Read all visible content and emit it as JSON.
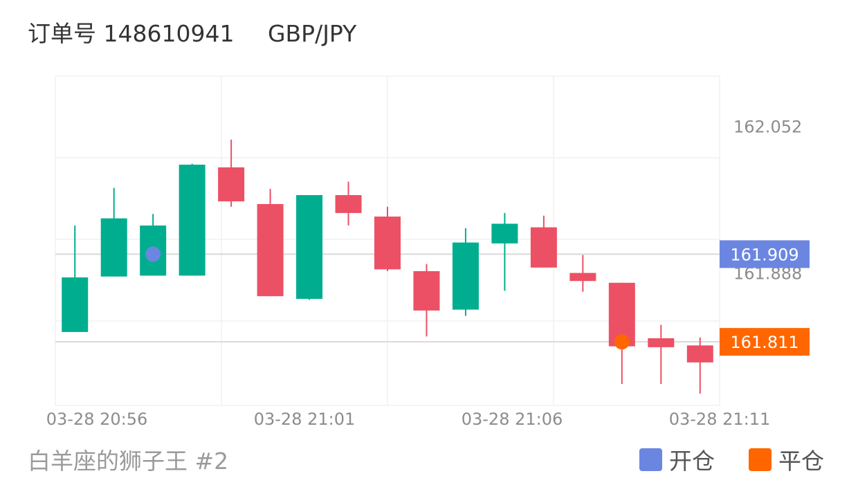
{
  "header": {
    "order_label": "订单号",
    "order_number": "148610941",
    "symbol": "GBP/JPY"
  },
  "footer": {
    "trader": "白羊座的狮子王 #2"
  },
  "legend": [
    {
      "label": "开仓",
      "color": "#6b86e0"
    },
    {
      "label": "平仓",
      "color": "#ff6600"
    }
  ],
  "colors": {
    "up": "#00ae8f",
    "down": "#ec5064",
    "open_marker": "#6b86e0",
    "close_marker": "#ff6600"
  },
  "chart_data": {
    "type": "candlestick",
    "x": [
      "20:56",
      "20:57",
      "20:58",
      "20:59",
      "21:00",
      "21:01",
      "21:02",
      "21:03",
      "21:04",
      "21:05",
      "21:06",
      "21:07",
      "21:08",
      "21:09",
      "21:10",
      "21:11",
      "21:12"
    ],
    "x_tick_labels": [
      "03-28 20:56",
      "03-28 21:01",
      "03-28 21:06",
      "03-28 21:11"
    ],
    "y_tick_labels": [
      "162.052",
      "161.888"
    ],
    "ylim": [
      161.74,
      162.108
    ],
    "candles": [
      {
        "open": 161.822,
        "close": 161.883,
        "high": 161.941,
        "low": 161.822
      },
      {
        "open": 161.884,
        "close": 161.949,
        "high": 161.983,
        "low": 161.884
      },
      {
        "open": 161.885,
        "close": 161.941,
        "high": 161.954,
        "low": 161.885
      },
      {
        "open": 161.885,
        "close": 162.009,
        "high": 162.01,
        "low": 161.885
      },
      {
        "open": 162.006,
        "close": 161.968,
        "high": 162.037,
        "low": 161.962
      },
      {
        "open": 161.965,
        "close": 161.862,
        "high": 161.982,
        "low": 161.862
      },
      {
        "open": 161.859,
        "close": 161.975,
        "high": 161.975,
        "low": 161.858
      },
      {
        "open": 161.975,
        "close": 161.955,
        "high": 161.99,
        "low": 161.941
      },
      {
        "open": 161.951,
        "close": 161.892,
        "high": 161.962,
        "low": 161.89
      },
      {
        "open": 161.89,
        "close": 161.846,
        "high": 161.898,
        "low": 161.817
      },
      {
        "open": 161.847,
        "close": 161.922,
        "high": 161.938,
        "low": 161.84
      },
      {
        "open": 161.921,
        "close": 161.943,
        "high": 161.955,
        "low": 161.868
      },
      {
        "open": 161.939,
        "close": 161.894,
        "high": 161.952,
        "low": 161.894
      },
      {
        "open": 161.888,
        "close": 161.879,
        "high": 161.908,
        "low": 161.867
      },
      {
        "open": 161.877,
        "close": 161.806,
        "high": 161.877,
        "low": 161.764
      },
      {
        "open": 161.815,
        "close": 161.805,
        "high": 161.83,
        "low": 161.764
      },
      {
        "open": 161.807,
        "close": 161.788,
        "high": 161.816,
        "low": 161.753
      }
    ],
    "open_trade": {
      "price": 161.909,
      "label": "161.909",
      "x_index": 2
    },
    "close_trade": {
      "price": 161.811,
      "label": "161.811",
      "x_index": 14
    }
  }
}
